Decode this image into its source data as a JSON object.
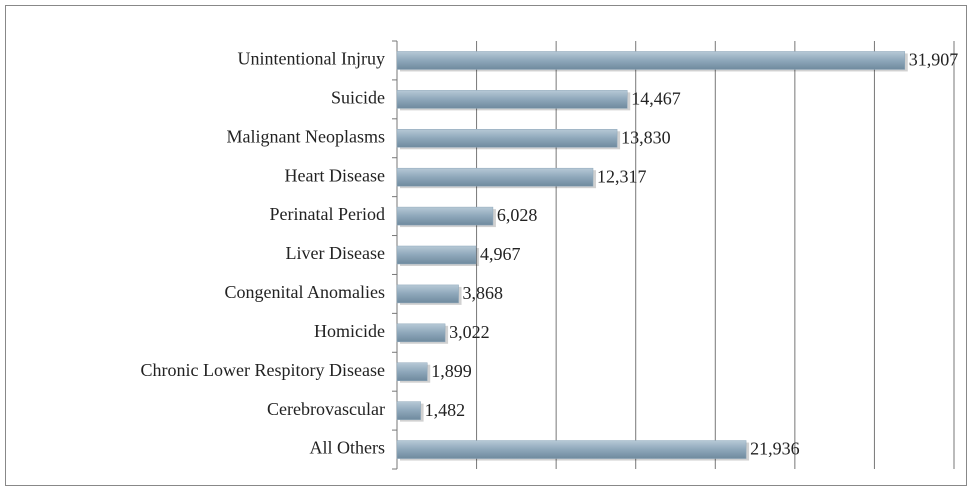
{
  "chart_data": {
    "type": "bar",
    "orientation": "horizontal",
    "categories": [
      "Unintentional Injruy",
      "Suicide",
      "Malignant Neoplasms",
      "Heart Disease",
      "Perinatal Period",
      "Liver Disease",
      "Congenital Anomalies",
      "Homicide",
      "Chronic Lower Respitory Disease",
      "Cerebrovascular",
      "All Others"
    ],
    "values": [
      31907,
      14467,
      13830,
      12317,
      6028,
      4967,
      3868,
      3022,
      1899,
      1482,
      21936
    ],
    "value_labels": [
      "31,907",
      "14,467",
      "13,830",
      "12,317",
      "6,028",
      "4,967",
      "3,868",
      "3,022",
      "1,899",
      "1,482",
      "21,936"
    ],
    "color": "#8ea7ba",
    "xlim": [
      0,
      35000
    ],
    "xticks": [
      0,
      5000,
      10000,
      15000,
      20000,
      25000,
      30000,
      35000
    ],
    "grid": true
  }
}
